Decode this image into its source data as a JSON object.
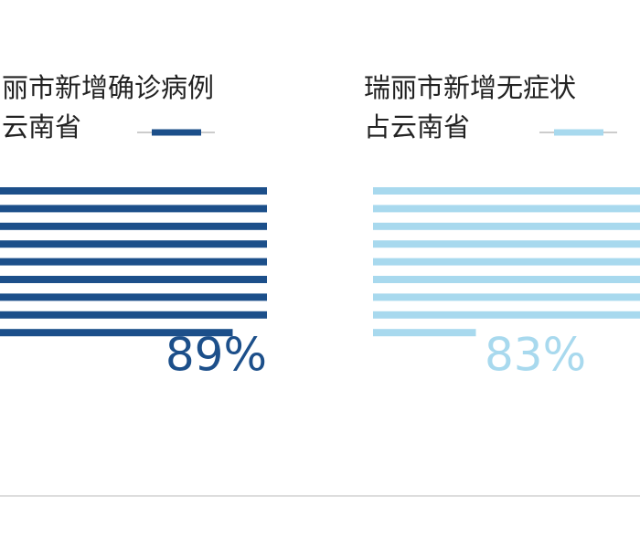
{
  "chart_data": [
    {
      "type": "percent-stripes",
      "title": "丽市新增确诊病例",
      "subtitle": "云南省",
      "values": [
        89
      ],
      "value_labels": [
        "89%"
      ],
      "color": "#1c4f8a",
      "ylim": [
        0,
        100
      ]
    },
    {
      "type": "percent-stripes",
      "title": "瑞丽市新增无症状",
      "subtitle": "占云南省",
      "values": [
        83
      ],
      "value_labels": [
        "83%"
      ],
      "color": "#a8d9ee",
      "ylim": [
        0,
        100
      ]
    }
  ]
}
